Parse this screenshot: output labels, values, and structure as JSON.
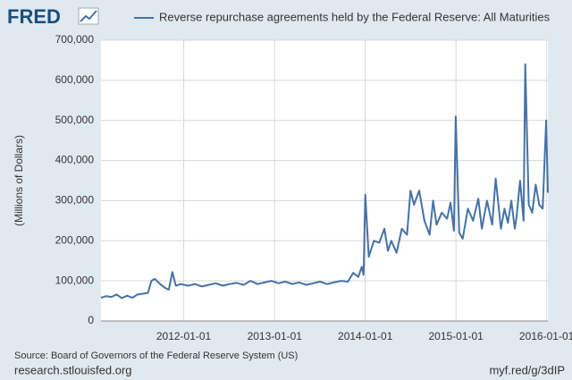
{
  "logo": "FRED",
  "chart_data": {
    "type": "line",
    "title": "Reverse repurchase agreements held by the Federal Reserve: All Maturities",
    "y_label": "(Millions of Dollars)",
    "source": "Source: Board of Governors of the Federal Reserve System (US)",
    "footer_left": "research.stlouisfed.org",
    "footer_right": "myf.red/g/3dIP",
    "x": [
      "2011-02-02",
      "2011-02-23",
      "2011-03-16",
      "2011-04-06",
      "2011-04-27",
      "2011-05-18",
      "2011-06-08",
      "2011-06-29",
      "2011-07-20",
      "2011-08-10",
      "2011-08-24",
      "2011-09-07",
      "2011-09-28",
      "2011-10-19",
      "2011-11-02",
      "2011-11-16",
      "2011-11-30",
      "2011-12-21",
      "2012-01-18",
      "2012-02-15",
      "2012-03-14",
      "2012-04-11",
      "2012-05-09",
      "2012-06-06",
      "2012-07-04",
      "2012-08-01",
      "2012-08-29",
      "2012-09-26",
      "2012-10-24",
      "2012-11-21",
      "2012-12-19",
      "2013-01-16",
      "2013-02-13",
      "2013-03-13",
      "2013-04-10",
      "2013-05-08",
      "2013-06-05",
      "2013-07-03",
      "2013-07-31",
      "2013-08-28",
      "2013-09-25",
      "2013-10-23",
      "2013-11-13",
      "2013-12-04",
      "2013-12-18",
      "2013-12-25",
      "2014-01-01",
      "2014-01-15",
      "2014-02-05",
      "2014-02-26",
      "2014-03-19",
      "2014-04-02",
      "2014-04-16",
      "2014-05-07",
      "2014-05-28",
      "2014-06-18",
      "2014-07-02",
      "2014-07-16",
      "2014-08-06",
      "2014-08-27",
      "2014-09-17",
      "2014-10-01",
      "2014-10-15",
      "2014-11-05",
      "2014-11-26",
      "2014-12-10",
      "2014-12-24",
      "2014-12-31",
      "2015-01-14",
      "2015-01-28",
      "2015-02-18",
      "2015-03-11",
      "2015-04-01",
      "2015-04-15",
      "2015-05-06",
      "2015-05-27",
      "2015-06-10",
      "2015-07-01",
      "2015-07-15",
      "2015-07-29",
      "2015-08-12",
      "2015-08-26",
      "2015-09-02",
      "2015-09-16",
      "2015-09-30",
      "2015-10-07",
      "2015-10-21",
      "2015-11-04",
      "2015-11-18",
      "2015-12-02",
      "2015-12-16",
      "2015-12-30",
      "2016-01-06"
    ],
    "series": [
      {
        "name": "Reverse repurchase agreements held by the Federal Reserve: All Maturities",
        "color": "#4572a7",
        "values": [
          58000,
          62000,
          60000,
          66000,
          57000,
          63000,
          58000,
          66000,
          68000,
          70000,
          100000,
          105000,
          92000,
          82000,
          78000,
          122000,
          88000,
          92000,
          88000,
          92000,
          86000,
          90000,
          94000,
          88000,
          92000,
          95000,
          90000,
          100000,
          92000,
          96000,
          100000,
          94000,
          98000,
          92000,
          96000,
          90000,
          94000,
          98000,
          92000,
          96000,
          100000,
          98000,
          120000,
          110000,
          135000,
          115000,
          315000,
          160000,
          200000,
          195000,
          230000,
          175000,
          200000,
          170000,
          230000,
          215000,
          325000,
          290000,
          325000,
          250000,
          215000,
          300000,
          240000,
          270000,
          255000,
          295000,
          225000,
          510000,
          220000,
          205000,
          280000,
          250000,
          305000,
          230000,
          300000,
          240000,
          355000,
          230000,
          280000,
          245000,
          300000,
          230000,
          260000,
          350000,
          250000,
          640000,
          290000,
          270000,
          340000,
          290000,
          280000,
          500000,
          320000
        ]
      }
    ],
    "xlim": [
      "2011-02-02",
      "2016-01-06"
    ],
    "xticks": [
      "2012-01-01",
      "2013-01-01",
      "2014-01-01",
      "2015-01-01",
      "2016-01-01"
    ],
    "ylim": [
      0,
      700000
    ],
    "yticks": [
      0,
      {
        "value": 100000,
        "label": "100,000"
      },
      {
        "value": 200000,
        "label": "200,000"
      },
      {
        "value": 300000,
        "label": "300,000"
      },
      {
        "value": 400000,
        "label": "400,000"
      },
      {
        "value": 500000,
        "label": "500,000"
      },
      {
        "value": 600000,
        "label": "600,000"
      },
      {
        "value": 700000,
        "label": "700,000"
      }
    ],
    "grid": true
  }
}
